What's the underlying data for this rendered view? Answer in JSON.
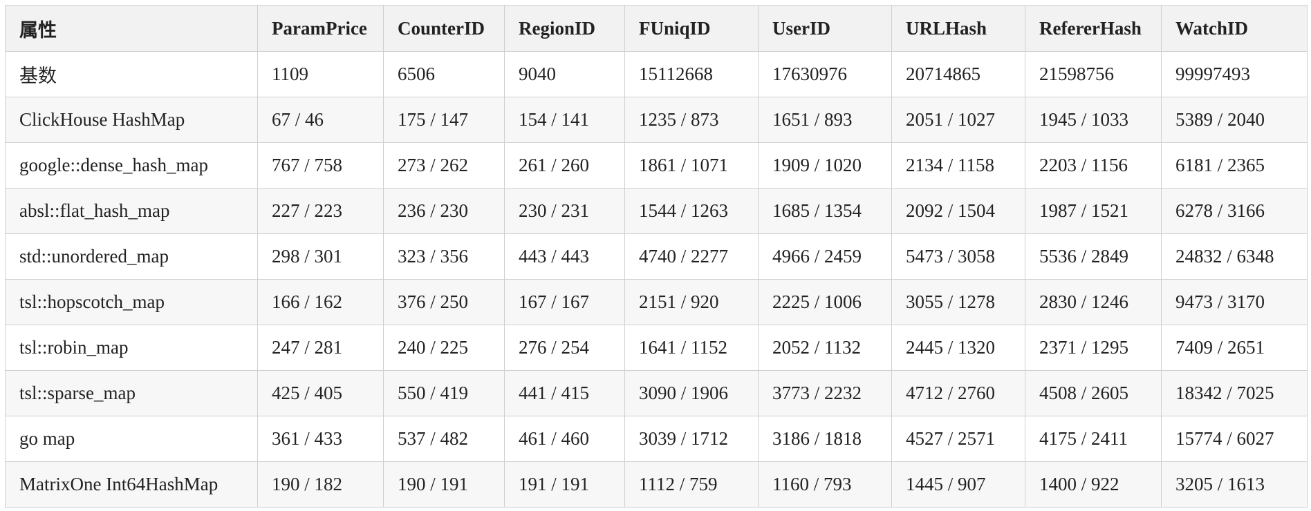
{
  "table": {
    "headers": [
      "属性",
      "ParamPrice",
      "CounterID",
      "RegionID",
      "FUniqID",
      "UserID",
      "URLHash",
      "RefererHash",
      "WatchID"
    ],
    "rows": [
      [
        "基数",
        "1109",
        "6506",
        "9040",
        "15112668",
        "17630976",
        "20714865",
        "21598756",
        "99997493"
      ],
      [
        "ClickHouse HashMap",
        "67 / 46",
        "175 / 147",
        "154 / 141",
        "1235 / 873",
        "1651 / 893",
        "2051 / 1027",
        "1945 / 1033",
        "5389 / 2040"
      ],
      [
        "google::dense_hash_map",
        "767 / 758",
        "273 / 262",
        "261 / 260",
        "1861 / 1071",
        "1909 / 1020",
        "2134 / 1158",
        "2203 / 1156",
        "6181 / 2365"
      ],
      [
        "absl::flat_hash_map",
        "227 / 223",
        "236 / 230",
        "230 / 231",
        "1544 / 1263",
        "1685 / 1354",
        "2092 / 1504",
        "1987 / 1521",
        "6278 / 3166"
      ],
      [
        "std::unordered_map",
        "298 / 301",
        "323 / 356",
        "443 / 443",
        "4740 / 2277",
        "4966 / 2459",
        "5473 / 3058",
        "5536 / 2849",
        "24832 / 6348"
      ],
      [
        "tsl::hopscotch_map",
        "166 / 162",
        "376 / 250",
        "167 / 167",
        "2151 / 920",
        "2225 / 1006",
        "3055 / 1278",
        "2830 / 1246",
        "9473 / 3170"
      ],
      [
        "tsl::robin_map",
        "247 / 281",
        "240 / 225",
        "276 / 254",
        "1641 / 1152",
        "2052 / 1132",
        "2445 / 1320",
        "2371 / 1295",
        "7409 / 2651"
      ],
      [
        "tsl::sparse_map",
        "425 / 405",
        "550 / 419",
        "441 / 415",
        "3090 / 1906",
        "3773 / 2232",
        "4712 / 2760",
        "4508 / 2605",
        "18342 / 7025"
      ],
      [
        "go map",
        "361 / 433",
        "537 / 482",
        "461 / 460",
        "3039 / 1712",
        "3186 / 1818",
        "4527 / 2571",
        "4175 / 2411",
        "15774 / 6027"
      ],
      [
        "MatrixOne Int64HashMap",
        "190 / 182",
        "190 / 191",
        "191 / 191",
        "1112 / 759",
        "1160 / 793",
        "1445 / 907",
        "1400 / 922",
        "3205 / 1613"
      ]
    ]
  }
}
